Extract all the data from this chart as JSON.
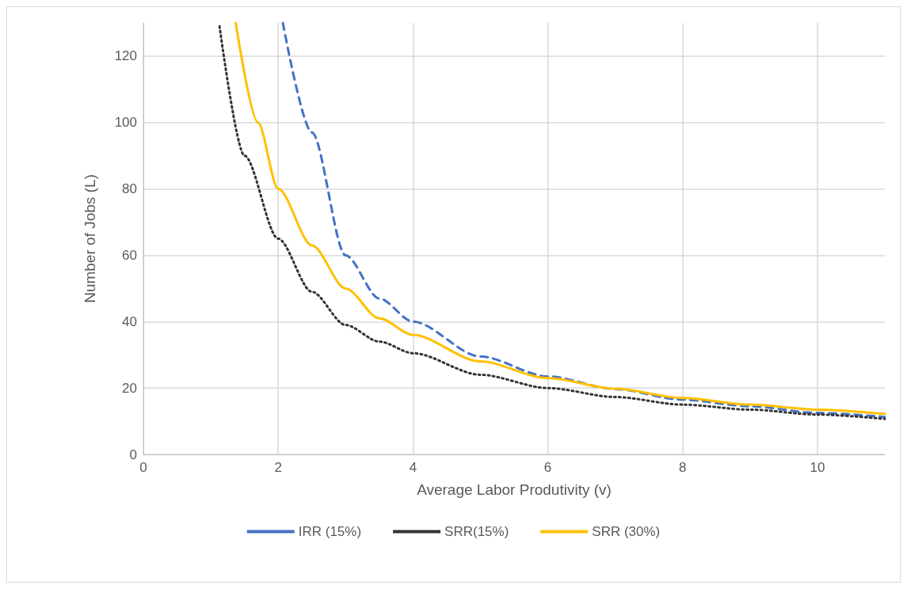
{
  "chart_data": {
    "type": "line",
    "xlabel": "Average Labor Produtivity (v)",
    "ylabel": "Number of Jobs (L)",
    "xlim": [
      0,
      11
    ],
    "xticks": [
      0,
      2,
      4,
      6,
      8,
      10
    ],
    "ylim": [
      0,
      130
    ],
    "yticks": [
      0,
      20,
      40,
      60,
      80,
      100,
      120
    ],
    "grid": true,
    "legend": "bottom",
    "marker": "none",
    "series": [
      {
        "name": "IRR (15%)",
        "color": "#4472c4",
        "line_style": "dashed",
        "x": [
          2.07,
          2.5,
          3,
          3.5,
          4,
          5,
          6,
          7,
          8,
          9,
          10,
          11
        ],
        "values": [
          130,
          97,
          60,
          47,
          40,
          29.5,
          23.5,
          19.7,
          16.5,
          14.5,
          12.5,
          11.3
        ]
      },
      {
        "name": "SRR(15%)",
        "color": "#333333",
        "line_style": "dotted",
        "x": [
          1.13,
          1.5,
          2,
          2.5,
          3,
          3.5,
          4,
          5,
          6,
          7,
          8,
          9,
          10,
          11
        ],
        "values": [
          129,
          90,
          65,
          49,
          39,
          34,
          30.5,
          24,
          20,
          17.3,
          15,
          13.5,
          12,
          10.7
        ]
      },
      {
        "name": "SRR (30%)",
        "color": "#ffc000",
        "line_style": "solid",
        "x": [
          1.37,
          1.7,
          2,
          2.5,
          3,
          3.5,
          4,
          5,
          6,
          7,
          8,
          9,
          10,
          11
        ],
        "values": [
          130,
          100,
          80,
          63,
          50,
          41,
          36,
          28,
          23,
          19.8,
          17,
          15,
          13.5,
          12.2
        ]
      }
    ]
  }
}
